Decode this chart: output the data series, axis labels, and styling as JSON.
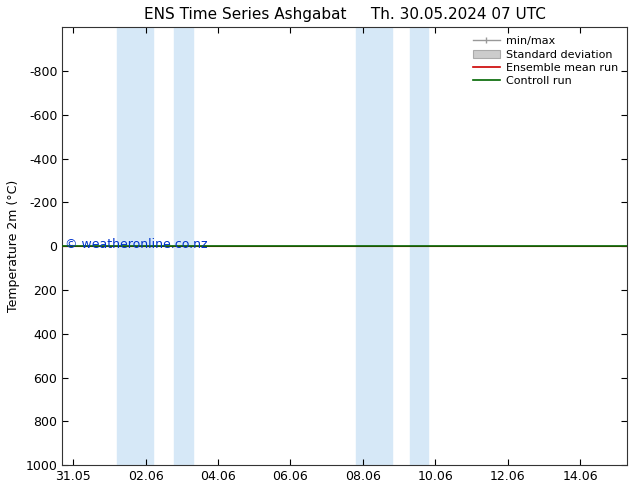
{
  "title_left": "ENS Time Series Ashgabat",
  "title_right": "Th. 30.05.2024 07 UTC",
  "ylabel": "Temperature 2m (°C)",
  "ylim_top": -1000,
  "ylim_bottom": 1000,
  "yticks": [
    -800,
    -600,
    -400,
    -200,
    0,
    200,
    400,
    600,
    800,
    1000
  ],
  "ytick_labels": [
    "-800",
    "-600",
    "-400",
    "-200",
    "0",
    "200",
    "400",
    "600",
    "800",
    "1000"
  ],
  "xtick_labels": [
    "31.05",
    "02.06",
    "04.06",
    "06.06",
    "08.06",
    "10.06",
    "12.06",
    "14.06"
  ],
  "xtick_positions": [
    0,
    2,
    4,
    6,
    8,
    10,
    12,
    14
  ],
  "x_min": -0.3,
  "x_max": 15.3,
  "blue_bands": [
    [
      1.2,
      2.2
    ],
    [
      2.8,
      3.3
    ],
    [
      7.8,
      8.8
    ],
    [
      9.3,
      9.8
    ]
  ],
  "blue_band_color": "#d6e8f7",
  "control_run_y": 0,
  "ensemble_mean_y": 0,
  "control_run_color": "#006600",
  "ensemble_mean_color": "#cc0000",
  "minmax_color": "#999999",
  "stddev_color": "#cccccc",
  "watermark": "© weatheronline.co.nz",
  "watermark_color": "#0033cc",
  "background_color": "#ffffff",
  "plot_bg_color": "#ffffff",
  "legend_labels": [
    "min/max",
    "Standard deviation",
    "Ensemble mean run",
    "Controll run"
  ],
  "legend_colors": [
    "#999999",
    "#cccccc",
    "#cc0000",
    "#006600"
  ],
  "font_size_title": 11,
  "font_size_ticks": 9,
  "font_size_label": 9,
  "font_size_legend": 8,
  "font_size_watermark": 9
}
